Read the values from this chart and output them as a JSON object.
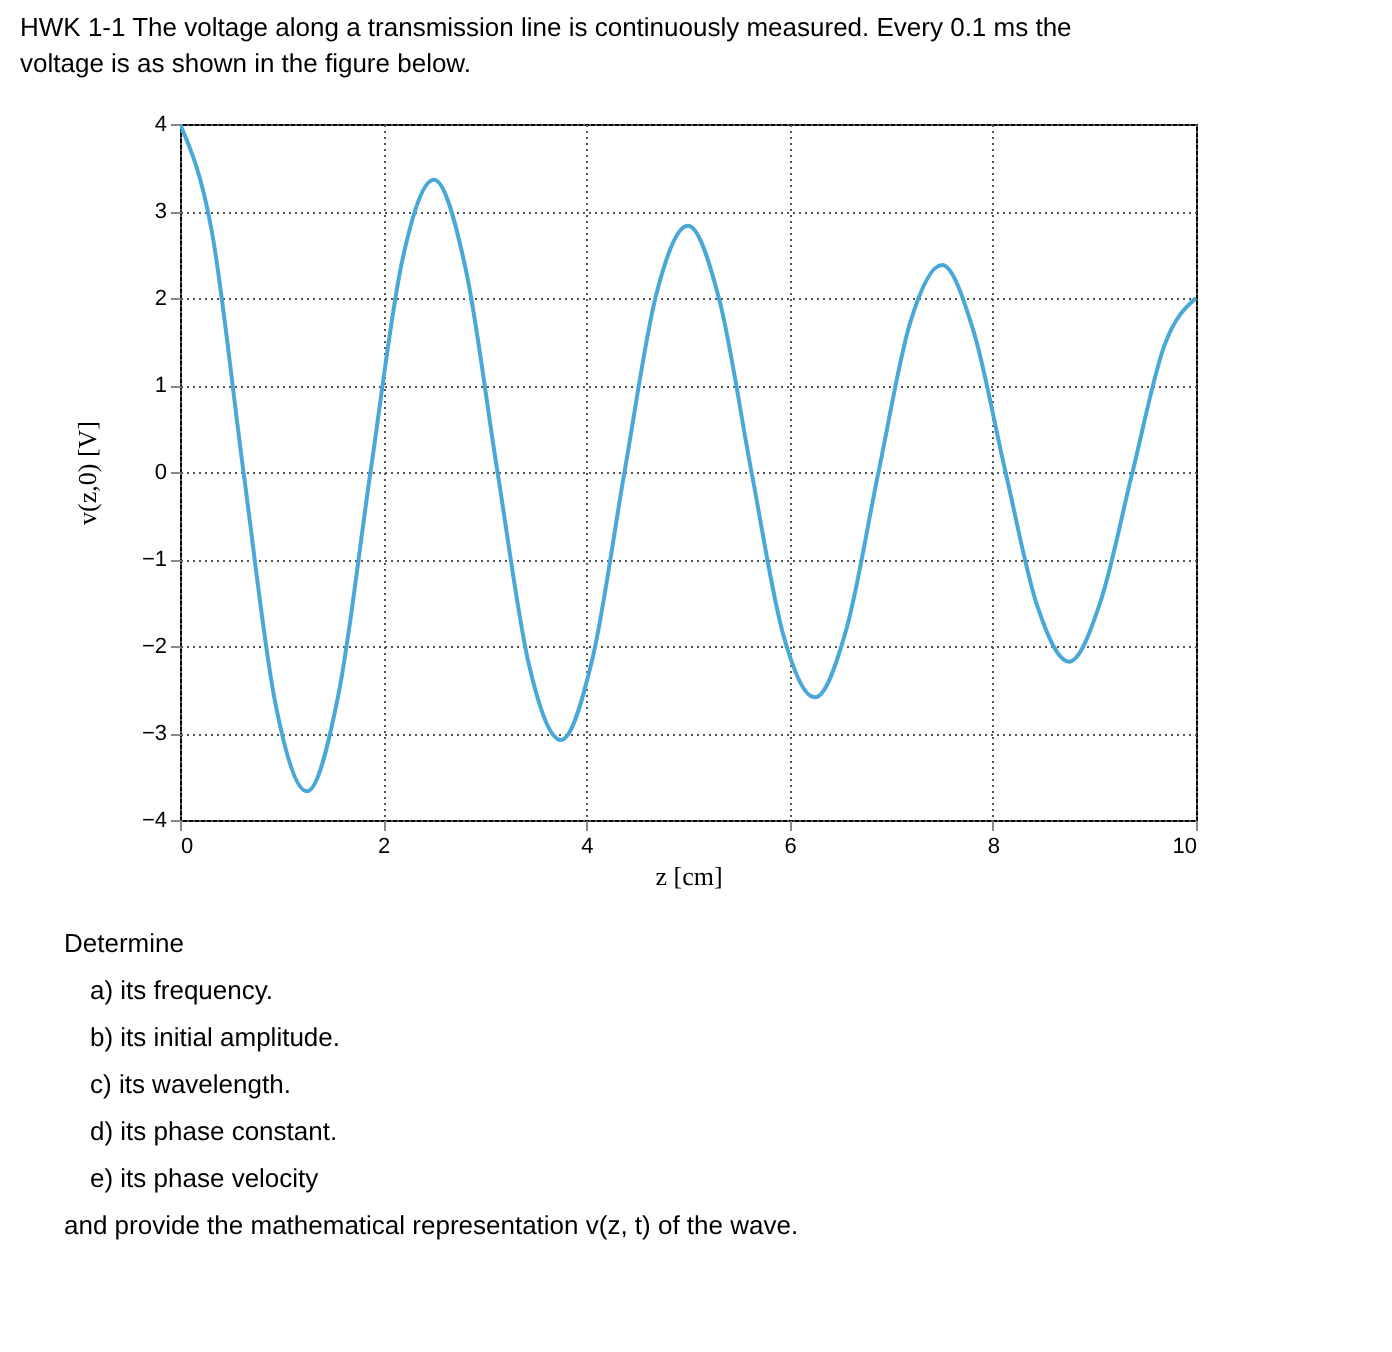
{
  "chart_data": {
    "type": "line",
    "title": "HWK 1-1 The voltage along a transmission line is continuously measured. Every 0.1 ms the voltage is as shown in the figure below.",
    "xlabel": "z [cm]",
    "ylabel": "v(z,0) [V]",
    "x": [
      0,
      0.3125,
      0.625,
      0.9375,
      1.25,
      1.5625,
      1.875,
      2.1875,
      2.5,
      2.8125,
      3.125,
      3.4375,
      3.75,
      4.0625,
      4.375,
      4.6875,
      5,
      5.3125,
      5.625,
      5.9375,
      6.25,
      6.5625,
      6.875,
      7.1875,
      7.5,
      7.8125,
      8.125,
      8.4375,
      8.75,
      9.0625,
      9.375,
      9.6875,
      10
    ],
    "series": [
      {
        "color": "#4aa8d8",
        "values": [
          4,
          2.77,
          0,
          -2.65,
          -3.67,
          -2.54,
          0,
          2.43,
          3.36,
          2.33,
          0,
          -2.23,
          -3.08,
          -2.13,
          0,
          2.04,
          2.83,
          1.96,
          0,
          -1.87,
          -2.59,
          -1.79,
          0,
          1.72,
          2.38,
          1.61,
          0,
          -1.54,
          -2.18,
          -1.48,
          0,
          1.45,
          2
        ]
      }
    ],
    "xlim": [
      0,
      10
    ],
    "ylim": [
      -4,
      4
    ],
    "xticks": [
      0,
      2,
      4,
      6,
      8,
      10
    ],
    "yticks": [
      -4,
      -3,
      -2,
      -1,
      0,
      1,
      2,
      3,
      4
    ],
    "grid": true,
    "annotations": [
      "Determine",
      "a) its frequency.",
      "b) its initial amplitude.",
      "c) its wavelength.",
      "d) its phase constant.",
      "e) its phase velocity",
      "and provide the mathematical representation v(z, t) of the wave."
    ]
  }
}
